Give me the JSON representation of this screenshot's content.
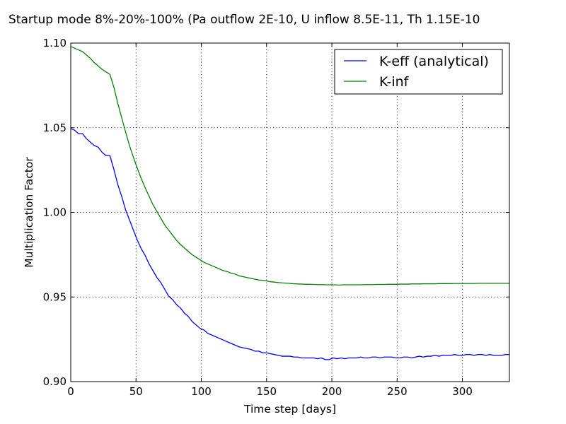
{
  "chart_data": {
    "type": "line",
    "title": "Startup mode 8%-20%-100% (Pa outflow 2E-10, U inflow 8.5E-11, Th 1.15E-10",
    "xlabel": "Time step [days]",
    "ylabel": "Multiplication Factor",
    "xlim": [
      0,
      336
    ],
    "ylim": [
      0.9,
      1.1
    ],
    "xticks": [
      0,
      50,
      100,
      150,
      200,
      250,
      300
    ],
    "yticks": [
      0.9,
      0.95,
      1.0,
      1.05,
      1.1
    ],
    "xtick_labels": [
      "0",
      "50",
      "100",
      "150",
      "200",
      "250",
      "300"
    ],
    "ytick_labels": [
      "0.90",
      "0.95",
      "1.00",
      "1.05",
      "1.10"
    ],
    "grid": true,
    "legend_position": "top-right",
    "x": [
      0,
      3,
      6,
      9,
      12,
      15,
      18,
      21,
      24,
      27,
      30,
      33,
      36,
      39,
      42,
      45,
      48,
      51,
      54,
      57,
      60,
      63,
      66,
      69,
      72,
      75,
      78,
      81,
      84,
      87,
      90,
      93,
      96,
      99,
      102,
      105,
      108,
      111,
      114,
      117,
      120,
      123,
      126,
      129,
      132,
      135,
      138,
      141,
      144,
      147,
      150,
      153,
      156,
      159,
      162,
      165,
      168,
      171,
      174,
      177,
      180,
      183,
      186,
      189,
      192,
      195,
      198,
      201,
      204,
      207,
      210,
      213,
      216,
      219,
      222,
      225,
      228,
      231,
      234,
      237,
      240,
      243,
      246,
      249,
      252,
      255,
      258,
      261,
      264,
      267,
      270,
      273,
      276,
      279,
      282,
      285,
      288,
      291,
      294,
      297,
      300,
      303,
      306,
      309,
      312,
      315,
      318,
      321,
      324,
      327,
      330,
      333,
      336
    ],
    "series": [
      {
        "name": "K-eff (analytical)",
        "color": "#0000ff",
        "values": [
          1.0495,
          1.0485,
          1.0465,
          1.0465,
          1.0435,
          1.0415,
          1.0395,
          1.0385,
          1.0355,
          1.0335,
          1.0335,
          1.0255,
          1.0165,
          1.0095,
          1.0015,
          0.9955,
          0.9895,
          0.9835,
          0.9785,
          0.9745,
          0.9695,
          0.9655,
          0.9615,
          0.9585,
          0.9545,
          0.9505,
          0.9485,
          0.9455,
          0.9435,
          0.9405,
          0.9385,
          0.9355,
          0.9335,
          0.9315,
          0.9305,
          0.9285,
          0.9275,
          0.9265,
          0.9255,
          0.9245,
          0.9235,
          0.9225,
          0.9215,
          0.9205,
          0.92,
          0.9195,
          0.919,
          0.918,
          0.918,
          0.917,
          0.917,
          0.9165,
          0.916,
          0.9155,
          0.915,
          0.915,
          0.915,
          0.9145,
          0.9145,
          0.914,
          0.914,
          0.914,
          0.914,
          0.9135,
          0.914,
          0.913,
          0.913,
          0.914,
          0.9135,
          0.914,
          0.9135,
          0.914,
          0.914,
          0.914,
          0.9145,
          0.914,
          0.914,
          0.9145,
          0.9145,
          0.914,
          0.9145,
          0.9145,
          0.9145,
          0.914,
          0.914,
          0.9145,
          0.9145,
          0.914,
          0.9145,
          0.915,
          0.9145,
          0.915,
          0.915,
          0.9155,
          0.915,
          0.9155,
          0.9155,
          0.9155,
          0.916,
          0.9155,
          0.9155,
          0.916,
          0.916,
          0.9155,
          0.916,
          0.916,
          0.9155,
          0.916,
          0.9155,
          0.9155,
          0.9155,
          0.916,
          0.916
        ]
      },
      {
        "name": "K-inf",
        "color": "#008000",
        "values": [
          1.098,
          1.097,
          1.096,
          1.095,
          1.093,
          1.091,
          1.0885,
          1.0865,
          1.0845,
          1.083,
          1.0815,
          1.074,
          1.0645,
          1.056,
          1.0475,
          1.0395,
          1.0325,
          1.026,
          1.02,
          1.0145,
          1.0095,
          1.0045,
          1.0005,
          0.9965,
          0.9925,
          0.9895,
          0.9865,
          0.9835,
          0.981,
          0.979,
          0.977,
          0.975,
          0.9735,
          0.972,
          0.9705,
          0.9695,
          0.9685,
          0.9675,
          0.9665,
          0.9655,
          0.965,
          0.964,
          0.9635,
          0.9625,
          0.962,
          0.9615,
          0.961,
          0.9605,
          0.96,
          0.9598,
          0.9595,
          0.959,
          0.9588,
          0.9585,
          0.9583,
          0.9582,
          0.958,
          0.9578,
          0.9577,
          0.9576,
          0.9575,
          0.9575,
          0.9574,
          0.9573,
          0.9573,
          0.9572,
          0.9572,
          0.9572,
          0.9571,
          0.9571,
          0.9572,
          0.9572,
          0.9572,
          0.9572,
          0.9572,
          0.9573,
          0.9573,
          0.9573,
          0.9574,
          0.9574,
          0.9574,
          0.9575,
          0.9575,
          0.9575,
          0.9576,
          0.9576,
          0.9576,
          0.9577,
          0.9577,
          0.9577,
          0.9578,
          0.9578,
          0.9578,
          0.9578,
          0.9579,
          0.9579,
          0.9579,
          0.9579,
          0.958,
          0.958,
          0.958,
          0.958,
          0.958,
          0.958,
          0.9581,
          0.9581,
          0.9581,
          0.9581,
          0.9581,
          0.9581,
          0.9581,
          0.9581,
          0.9581
        ]
      }
    ]
  }
}
